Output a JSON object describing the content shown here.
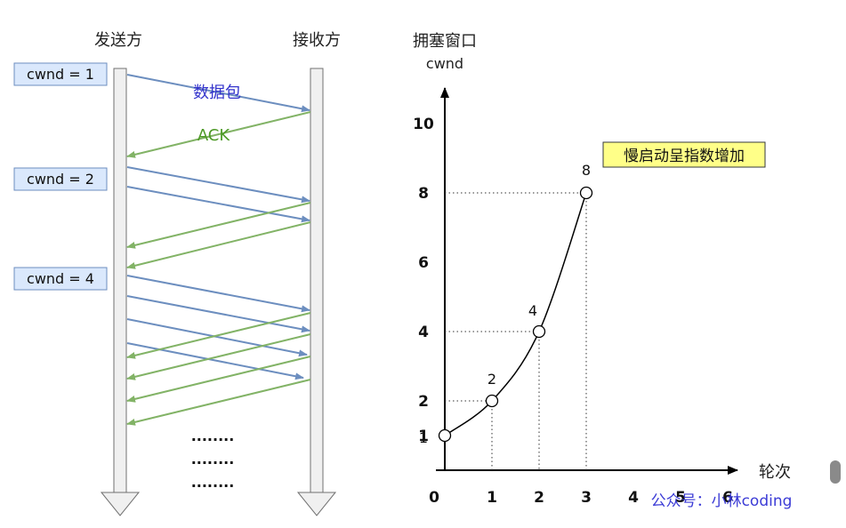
{
  "sequence": {
    "sender_label": "发送方",
    "receiver_label": "接收方",
    "cwnd_labels": [
      "cwnd = 1",
      "cwnd = 2",
      "cwnd = 4"
    ],
    "packet_label": "数据包",
    "ack_label": "ACK",
    "ellipsis": "........",
    "colors": {
      "packet": "#6c8ebf",
      "ack": "#82b366",
      "packet_text": "#3333cc",
      "ack_text": "#4d9a26",
      "box_fill": "#dae8fc",
      "box_stroke": "#6c8ebf"
    }
  },
  "chart_data": {
    "type": "line",
    "title": "慢启动呈指数增加",
    "ylabel": "拥塞窗口",
    "ylabel_unit": "cwnd",
    "xlabel": "轮次",
    "x_ticks": [
      "0",
      "1",
      "2",
      "3",
      "4",
      "5",
      "6"
    ],
    "y_ticks": [
      "1",
      "2",
      "4",
      "6",
      "8",
      "10"
    ],
    "series": [
      {
        "x": [
          0,
          1,
          2,
          3
        ],
        "y": [
          1,
          2,
          4,
          8
        ],
        "point_labels": [
          "1",
          "2",
          "4",
          "8"
        ]
      }
    ],
    "title_bg": "#ffff88"
  },
  "watermark": "公众号：小林coding"
}
